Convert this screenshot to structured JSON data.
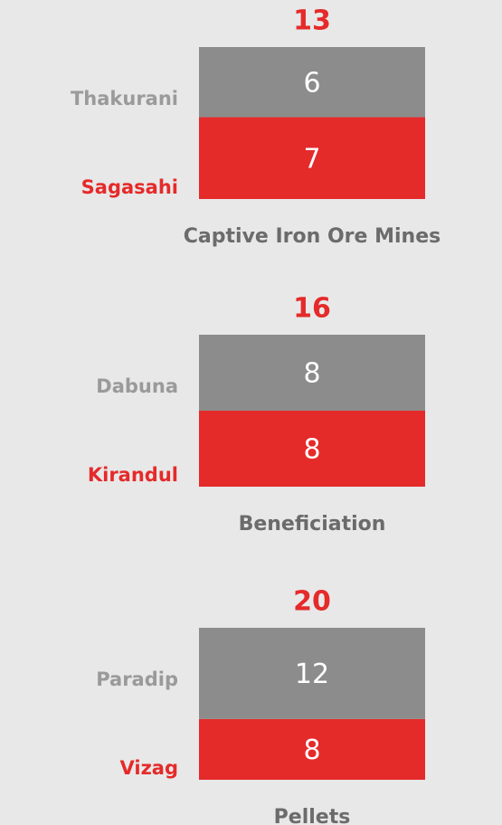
{
  "chart_data": [
    {
      "type": "bar",
      "stacked": true,
      "categories": [
        "Captive Iron Ore Mines"
      ],
      "totals": [
        13
      ],
      "total_color": "#e52a2a",
      "series": [
        {
          "name": "Sagasahi",
          "color": "#e52a2a",
          "values": [
            7
          ]
        },
        {
          "name": "Thakurani",
          "color": "#8c8c8c",
          "values": [
            6
          ]
        }
      ]
    },
    {
      "type": "bar",
      "stacked": true,
      "categories": [
        "Beneficiation"
      ],
      "totals": [
        16
      ],
      "total_color": "#e52a2a",
      "series": [
        {
          "name": "Kirandul",
          "color": "#e52a2a",
          "values": [
            8
          ]
        },
        {
          "name": "Dabuna",
          "color": "#8c8c8c",
          "values": [
            8
          ]
        }
      ]
    },
    {
      "type": "bar",
      "stacked": true,
      "categories": [
        "Pellets"
      ],
      "totals": [
        20
      ],
      "total_color": "#e52a2a",
      "series": [
        {
          "name": "Vizag",
          "color": "#e52a2a",
          "values": [
            8
          ]
        },
        {
          "name": "Paradip",
          "color": "#8c8c8c",
          "values": [
            12
          ]
        }
      ]
    }
  ]
}
